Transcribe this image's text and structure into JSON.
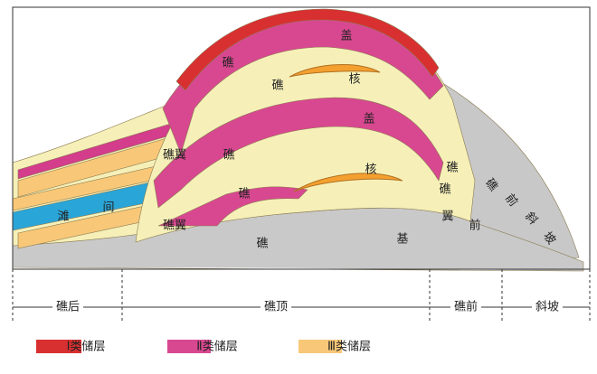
{
  "annotations": [
    "盖",
    "礁",
    "礁",
    "核",
    "盖",
    "礁翼",
    "礁",
    "核",
    "礁",
    "礁翼",
    "礁",
    "基",
    "滩",
    "间",
    "礁",
    "礁",
    "翼",
    "前",
    "礁",
    "前",
    "斜",
    "坡"
  ],
  "zones": [
    "礁后",
    "礁顶",
    "礁前",
    "斜坡"
  ],
  "legend": [
    "Ⅰ类储层",
    "Ⅱ类储层",
    "Ⅲ类储层"
  ]
}
